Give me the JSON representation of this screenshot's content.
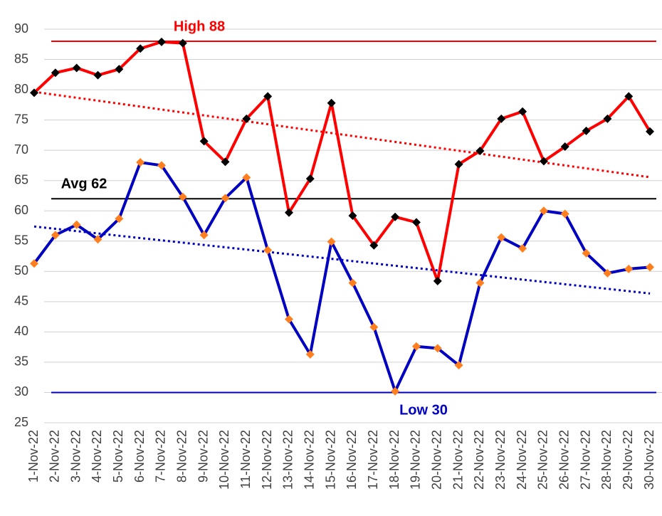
{
  "chart_data": {
    "type": "line",
    "categories": [
      "1-Nov-22",
      "2-Nov-22",
      "3-Nov-22",
      "4-Nov-22",
      "5-Nov-22",
      "6-Nov-22",
      "7-Nov-22",
      "8-Nov-22",
      "9-Nov-22",
      "10-Nov-22",
      "11-Nov-22",
      "12-Nov-22",
      "13-Nov-22",
      "14-Nov-22",
      "15-Nov-22",
      "16-Nov-22",
      "17-Nov-22",
      "18-Nov-22",
      "19-Nov-22",
      "20-Nov-22",
      "21-Nov-22",
      "22-Nov-22",
      "23-Nov-22",
      "24-Nov-22",
      "25-Nov-22",
      "26-Nov-22",
      "27-Nov-22",
      "28-Nov-22",
      "29-Nov-22",
      "30-Nov-22"
    ],
    "series": [
      {
        "color": "#ff0000",
        "marker_color": "#000000",
        "trendline": true,
        "values": [
          79.5,
          82.8,
          83.6,
          82.4,
          83.4,
          86.8,
          87.9,
          87.7,
          71.5,
          68.1,
          75.2,
          78.9,
          59.7,
          65.3,
          77.8,
          59.2,
          54.3,
          59.0,
          58.1,
          48.4,
          67.7,
          69.9,
          75.2,
          76.4,
          68.2,
          70.6,
          73.2,
          75.2,
          78.9,
          73.1
        ]
      },
      {
        "color": "#0000c0",
        "marker_color": "#ff7f1e",
        "trendline": true,
        "values": [
          51.3,
          56.0,
          57.7,
          55.3,
          58.7,
          68.0,
          67.5,
          62.3,
          56.0,
          62.1,
          65.5,
          53.5,
          42.1,
          36.3,
          54.9,
          48.1,
          40.8,
          30.2,
          37.6,
          37.3,
          34.5,
          48.1,
          55.6,
          53.8,
          60.0,
          59.5,
          53.0,
          49.7,
          50.4,
          50.7
        ]
      }
    ],
    "reference_lines": [
      {
        "label": "High 88",
        "value": 88,
        "color": "#ff0000",
        "label_side": "above"
      },
      {
        "label": "Avg 62",
        "value": 62,
        "color": "#000000",
        "label_side": "above"
      },
      {
        "label": "Low 30",
        "value": 30,
        "color": "#0000c0",
        "label_side": "below"
      }
    ],
    "ylim": [
      25,
      90
    ],
    "yticks": [
      25,
      30,
      35,
      40,
      45,
      50,
      55,
      60,
      65,
      70,
      75,
      80,
      85,
      90
    ],
    "grid": true
  }
}
